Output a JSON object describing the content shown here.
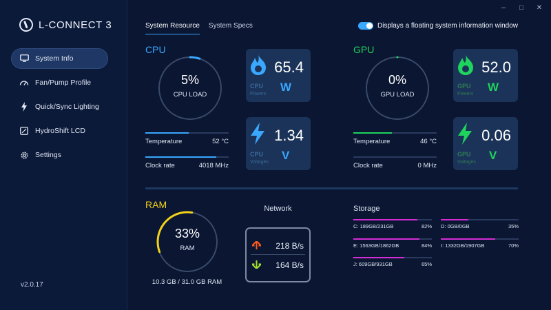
{
  "app": {
    "title": "L-CONNECT 3",
    "version": "v2.0.17"
  },
  "window_controls": [
    "–",
    "□",
    "✕"
  ],
  "sidebar": {
    "items": [
      {
        "label": "System Info",
        "icon": "monitor-icon",
        "active": true
      },
      {
        "label": "Fan/Pump Profile",
        "icon": "fan-gauge-icon",
        "active": false
      },
      {
        "label": "Quick/Sync Lighting",
        "icon": "lightning-icon",
        "active": false
      },
      {
        "label": "HydroShift LCD",
        "icon": "lcd-icon",
        "active": false
      },
      {
        "label": "Settings",
        "icon": "gear-icon",
        "active": false
      }
    ]
  },
  "tabs": [
    {
      "label": "System Resource",
      "active": true
    },
    {
      "label": "System Specs",
      "active": false
    }
  ],
  "floating_toggle": {
    "label": "Displays a floating system information window",
    "on": true
  },
  "cpu": {
    "title": "CPU",
    "load_value": "5%",
    "load_label": "CPU LOAD",
    "load_fraction": 0.05,
    "temperature_label": "Temperature",
    "temperature_value": "52 °C",
    "temperature_fraction": 0.52,
    "clock_label": "Clock rate",
    "clock_value": "4018 MHz",
    "clock_fraction": 0.85,
    "power_card": {
      "value": "65.4",
      "unit": "W",
      "kind": "CPU",
      "sub": "Powers"
    },
    "voltage_card": {
      "value": "1.34",
      "unit": "V",
      "kind": "CPU",
      "sub": "Voltages"
    }
  },
  "gpu": {
    "title": "GPU",
    "load_value": "0%",
    "load_label": "GPU LOAD",
    "load_fraction": 0,
    "temperature_label": "Temperature",
    "temperature_value": "46 °C",
    "temperature_fraction": 0.46,
    "clock_label": "Clock rate",
    "clock_value": "0 MHz",
    "clock_fraction": 0,
    "power_card": {
      "value": "52.0",
      "unit": "W",
      "kind": "GPU",
      "sub": "Powers"
    },
    "voltage_card": {
      "value": "0.06",
      "unit": "V",
      "kind": "GPU",
      "sub": "Voltages"
    }
  },
  "ram": {
    "title": "RAM",
    "value": "33%",
    "label": "RAM",
    "fraction": 0.33,
    "detail": "10.3 GB / 31.0 GB RAM"
  },
  "network": {
    "title": "Network",
    "upload": "218 B/s",
    "download": "164 B/s"
  },
  "storage": {
    "title": "Storage",
    "drives": [
      {
        "label": "C: 189GB/231GB",
        "percent": "82%",
        "fraction": 0.82
      },
      {
        "label": "D: 0GB/0GB",
        "percent": "35%",
        "fraction": 0.35
      },
      {
        "label": "E: 1563GB/1862GB",
        "percent": "84%",
        "fraction": 0.84
      },
      {
        "label": "I: 1332GB/1907GB",
        "percent": "70%",
        "fraction": 0.7
      },
      {
        "label": "J: 609GB/931GB",
        "percent": "65%",
        "fraction": 0.65
      }
    ]
  },
  "colors": {
    "cpu_accent": "#3aa8ff",
    "gpu_accent": "#1fd45c",
    "ram_accent": "#f2d21b",
    "storage_accent": "#d62cd6",
    "upload_arrow": "#ff5a1f",
    "download_arrow": "#a6e22e"
  }
}
